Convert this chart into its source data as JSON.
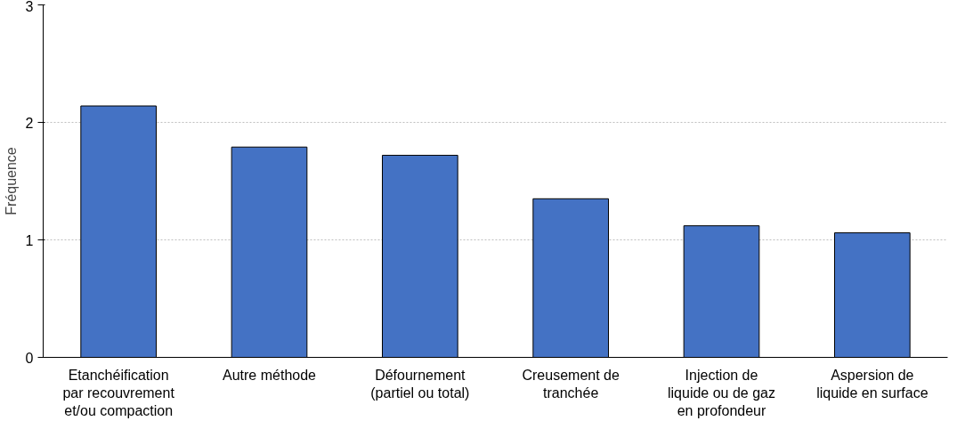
{
  "chart_data": {
    "type": "bar",
    "ylabel": "Fréquence",
    "categories": [
      "Etanchéification par recouvrement et/ou compaction",
      "Autre méthode",
      "Défournement (partiel ou total)",
      "Creusement de tranchée",
      "Injection de liquide ou de gaz en profondeur",
      "Aspersion de liquide en surface"
    ],
    "values": [
      2.14,
      1.79,
      1.72,
      1.35,
      1.12,
      1.06
    ],
    "color": "#4472c4",
    "ylim": [
      0,
      3
    ],
    "yticks": [
      0,
      1,
      2,
      3
    ],
    "grid": "y"
  }
}
